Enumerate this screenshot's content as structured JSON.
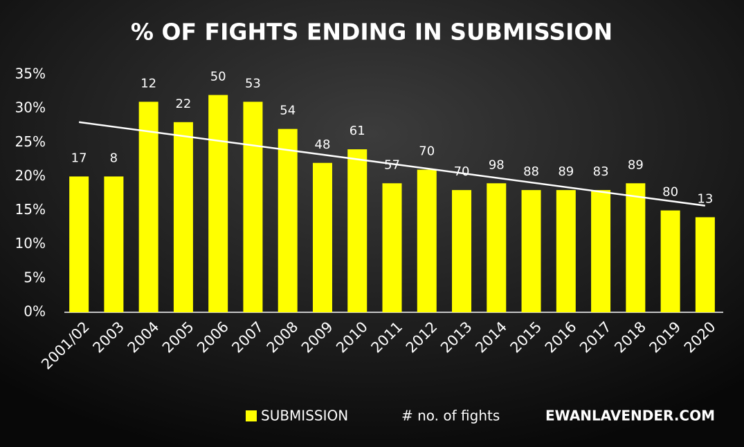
{
  "chart_data": {
    "type": "bar",
    "title": "% OF FIGHTS ENDING IN SUBMISSION",
    "categories": [
      "2001/02",
      "2003",
      "2004",
      "2005",
      "2006",
      "2007",
      "2008",
      "2009",
      "2010",
      "2011",
      "2012",
      "2013",
      "2014",
      "2015",
      "2016",
      "2017",
      "2018",
      "2019",
      "2020"
    ],
    "series": [
      {
        "name": "SUBMISSION",
        "color": "#ffff00",
        "values": [
          20,
          20,
          31,
          28,
          32,
          31,
          27,
          22,
          24,
          19,
          21,
          18,
          19,
          18,
          18,
          18,
          19,
          15,
          14
        ]
      }
    ],
    "fight_counts": {
      "name": "# no. of fights",
      "values": [
        17,
        8,
        12,
        22,
        50,
        53,
        54,
        48,
        61,
        57,
        70,
        70,
        98,
        88,
        89,
        83,
        89,
        80,
        13
      ]
    },
    "trendline": {
      "color": "#ffffff",
      "values": [
        28,
        15.7
      ]
    },
    "ylim": [
      0,
      35
    ],
    "yticks": [
      {
        "value": 0,
        "label": "0%"
      },
      {
        "value": 5,
        "label": "5%"
      },
      {
        "value": 10,
        "label": "10%"
      },
      {
        "value": 15,
        "label": "15%"
      },
      {
        "value": 20,
        "label": "20%"
      },
      {
        "value": 25,
        "label": "25%"
      },
      {
        "value": 30,
        "label": "30%"
      },
      {
        "value": 35,
        "label": "35%"
      }
    ],
    "grid": false,
    "credit": "EWANLAVENDER.COM"
  }
}
